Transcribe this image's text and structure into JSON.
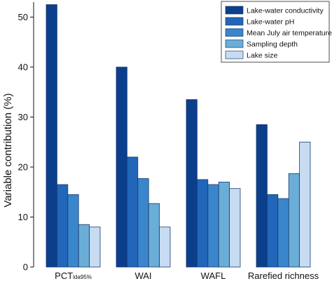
{
  "chart_data": {
    "type": "bar",
    "title": "",
    "xlabel": "",
    "ylabel": "Variable contribution (%)",
    "ylim": [
      0,
      53
    ],
    "yticks": [
      0,
      10,
      20,
      30,
      40,
      50
    ],
    "grid": false,
    "legend_position": "top-right",
    "categories": [
      {
        "main": "PCT",
        "sub": "lda95%"
      },
      {
        "main": "WAI",
        "sub": ""
      },
      {
        "main": "WAFL",
        "sub": ""
      },
      {
        "main": "Rarefied richness",
        "sub": ""
      }
    ],
    "series": [
      {
        "name": "Lake-water conductivity",
        "color": "#0b3f8c",
        "values": [
          52.5,
          40.0,
          33.5,
          28.5
        ]
      },
      {
        "name": "Lake-water pH",
        "color": "#2166b8",
        "values": [
          16.5,
          22.0,
          17.5,
          14.5
        ]
      },
      {
        "name": "Mean July air temperature",
        "color": "#3a86cc",
        "values": [
          14.5,
          17.7,
          16.5,
          13.7
        ]
      },
      {
        "name": "Sampling depth",
        "color": "#6aaed8",
        "values": [
          8.5,
          12.7,
          17.0,
          18.7
        ]
      },
      {
        "name": "Lake size",
        "color": "#c7dcf2",
        "values": [
          8.0,
          8.0,
          15.7,
          25.0
        ]
      }
    ]
  }
}
